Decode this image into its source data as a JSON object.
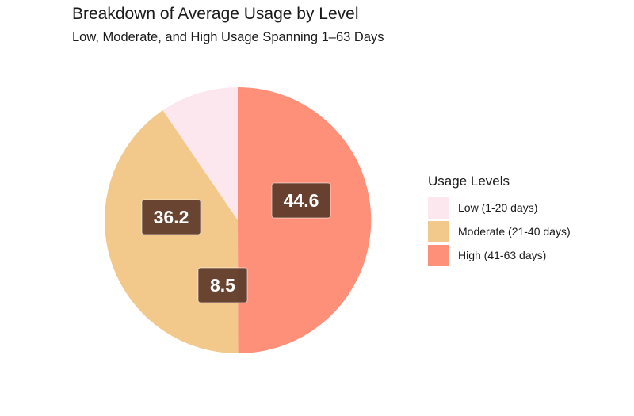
{
  "chart_data": {
    "type": "pie",
    "title": "Breakdown of Average Usage by Level",
    "subtitle": "Low, Moderate, and High Usage Spanning 1–63 Days",
    "legend_title": "Usage Levels",
    "legend_position": "right",
    "categories": [
      "Low (1-20 days)",
      "Moderate (21-40 days)",
      "High (41-63 days)"
    ],
    "values": [
      8.5,
      36.2,
      44.6
    ],
    "data_labels": [
      "8.5",
      "36.2",
      "44.6"
    ],
    "colors": [
      "#FDE7EE",
      "#F3C98B",
      "#FE8F78"
    ],
    "label_box_color": "#5C3A2A"
  }
}
